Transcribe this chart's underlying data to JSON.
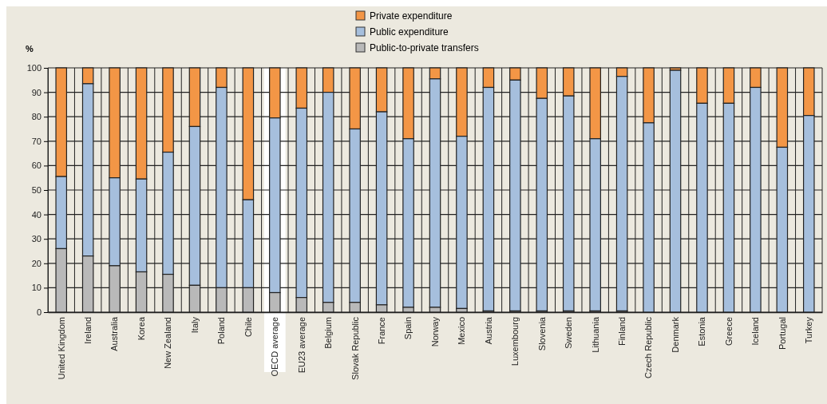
{
  "chart_data": {
    "type": "bar",
    "stacked": true,
    "ylabel": "%",
    "legend": "top",
    "grid": true,
    "categories": [
      "United Kingdom",
      "Ireland",
      "Australia",
      "Korea",
      "New Zealand",
      "Italy",
      "Poland",
      "Chile",
      "OECD average",
      "EU23 average",
      "Belgium",
      "Slovak Republic",
      "France",
      "Spain",
      "Norway",
      "Mexico",
      "Austria",
      "Luxembourg",
      "Slovenia",
      "Sweden",
      "Lithuania",
      "Finland",
      "Czech Republic",
      "Denmark",
      "Estonia",
      "Greece",
      "Iceland",
      "Portugal",
      "Turkey"
    ],
    "series": [
      {
        "name": "Public-to-private transfers",
        "color": "#b9b9b9",
        "values": [
          26,
          23,
          19,
          16.5,
          15.5,
          11,
          10,
          10,
          8,
          6,
          4,
          4,
          3,
          2,
          2,
          1.5,
          0.5,
          0.5,
          0.5,
          0.5,
          0.5,
          0.5,
          0,
          0,
          0,
          0,
          0,
          0,
          0
        ]
      },
      {
        "name": "Public expenditure",
        "color": "#a6bfdd",
        "values": [
          29.5,
          70.5,
          36,
          38,
          50,
          65,
          82,
          36,
          71.5,
          77.5,
          86,
          71,
          79,
          69,
          93.5,
          70.5,
          91.5,
          94.5,
          87,
          88,
          70.5,
          96,
          77.5,
          99,
          85.5,
          85.5,
          92,
          67.5,
          80.5
        ]
      },
      {
        "name": "Private expenditure",
        "color": "#f39646",
        "values": [
          44.5,
          6.5,
          45,
          45.5,
          34.5,
          24,
          8,
          54,
          20.5,
          16.5,
          10,
          25,
          18,
          29,
          4.5,
          28,
          8,
          5,
          12.5,
          11.5,
          29,
          3.5,
          22.5,
          1,
          14.5,
          14.5,
          8,
          32.5,
          19.5
        ]
      }
    ],
    "ylim": [
      0,
      100
    ],
    "yticks": [
      0,
      10,
      20,
      30,
      40,
      50,
      60,
      70,
      80,
      90,
      100
    ],
    "bands": [
      {
        "axis": "x",
        "from": "OECD average",
        "to": "OECD average",
        "color": "#ffffff"
      }
    ]
  }
}
